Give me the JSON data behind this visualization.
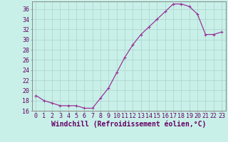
{
  "x": [
    0,
    1,
    2,
    3,
    4,
    5,
    6,
    7,
    8,
    9,
    10,
    11,
    12,
    13,
    14,
    15,
    16,
    17,
    18,
    19,
    20,
    21,
    22,
    23
  ],
  "y": [
    19,
    18,
    17.5,
    17,
    17,
    17,
    16.5,
    16.5,
    18.5,
    20.5,
    23.5,
    26.5,
    29,
    31,
    32.5,
    34,
    35.5,
    37,
    37,
    36.5,
    35,
    31,
    31,
    31.5
  ],
  "xlabel": "Windchill (Refroidissement éolien,°C)",
  "xlim": [
    -0.5,
    23.5
  ],
  "ylim": [
    16,
    37.5
  ],
  "yticks": [
    16,
    18,
    20,
    22,
    24,
    26,
    28,
    30,
    32,
    34,
    36
  ],
  "xticks": [
    0,
    1,
    2,
    3,
    4,
    5,
    6,
    7,
    8,
    9,
    10,
    11,
    12,
    13,
    14,
    15,
    16,
    17,
    18,
    19,
    20,
    21,
    22,
    23
  ],
  "line_color": "#993399",
  "marker": "+",
  "bg_color": "#c8f0e8",
  "grid_color": "#b0d8d0",
  "axis_color": "#888888",
  "tick_label_color": "#660066",
  "xlabel_color": "#660066",
  "tick_fontsize": 6,
  "xlabel_fontsize": 7
}
